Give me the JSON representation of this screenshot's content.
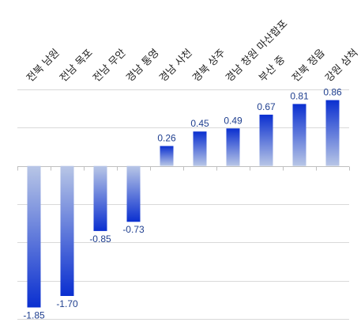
{
  "chart_data": {
    "type": "bar",
    "title": "",
    "xlabel": "",
    "ylabel": "",
    "categories": [
      "전북 남원",
      "전남 목포",
      "전남 무안",
      "경남 통영",
      "경남 사천",
      "경북 상주",
      "경남 창원 마산합포",
      "부산 중",
      "전북 정읍",
      "강원 삼척"
    ],
    "values": [
      -1.85,
      -1.7,
      -0.85,
      -0.73,
      0.26,
      0.45,
      0.49,
      0.67,
      0.81,
      0.86
    ],
    "value_labels": [
      "-1.85",
      "-1.70",
      "-0.85",
      "-0.73",
      "0.26",
      "0.45",
      "0.49",
      "0.67",
      "0.81",
      "0.86"
    ],
    "ylim": [
      -2.0,
      1.0
    ],
    "grid": true,
    "legend": "none",
    "colors": {
      "bar_dark": "#0a2fd0",
      "bar_light": "#b8c6e6",
      "label": "#1f3f8f"
    }
  }
}
